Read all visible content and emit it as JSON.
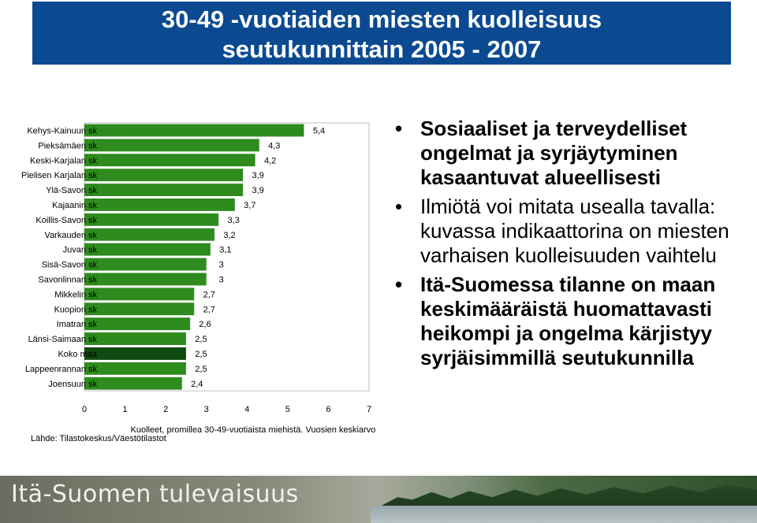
{
  "header": {
    "title_line1": "30-49 -vuotiaiden miesten kuolleisuus",
    "title_line2": "seutukunnittain 2005 - 2007"
  },
  "chart_data": {
    "type": "bar",
    "orientation": "horizontal",
    "categories": [
      "Kehys-Kainuun sk",
      "Pieksämäen sk",
      "Keski-Karjalan sk",
      "Pielisen Karjalan sk",
      "Ylä-Savon sk",
      "Kajaanin sk",
      "Koillis-Savon sk",
      "Varkauden sk",
      "Juvan sk",
      "Sisä-Savon sk",
      "Savonlinnan sk",
      "Mikkelin sk",
      "Kuopion sk",
      "Imatran sk",
      "Länsi-Saimaan sk",
      "Koko maa",
      "Lappeenrannan sk",
      "Joensuun sk"
    ],
    "values": [
      5.4,
      4.3,
      4.2,
      3.9,
      3.9,
      3.7,
      3.3,
      3.2,
      3.1,
      3.0,
      3.0,
      2.7,
      2.7,
      2.6,
      2.5,
      2.5,
      2.5,
      2.4
    ],
    "value_labels": [
      "5,4",
      "4,3",
      "4,2",
      "3,9",
      "3,9",
      "3,7",
      "3,3",
      "3,2",
      "3,1",
      "3",
      "3",
      "2,7",
      "2,7",
      "2,6",
      "2,5",
      "2,5",
      "2,5",
      "2,4"
    ],
    "xlim": [
      0,
      7
    ],
    "xticks": [
      "0",
      "1",
      "2",
      "3",
      "4",
      "5",
      "6",
      "7"
    ],
    "xlabel": "Kuolleet, promillea 30-49-vuotiaista miehistä. Vuosien keskiarvo",
    "bar_color": "#2e8b1e",
    "highlight_category": "Koko maa",
    "highlight_color": "#0f4a0f"
  },
  "source": "Lähde: Tilastokeskus/Väestötilastot",
  "bullets": [
    {
      "text": "Sosiaaliset ja terveydelliset ongelmat ja syrjäytyminen kasaantuvat alueellisesti",
      "bold": true
    },
    {
      "text": "Ilmiötä voi mitata usealla tavalla: kuvassa indikaattorina  on miesten varhaisen kuolleisuuden vaihtelu",
      "bold": false
    },
    {
      "text": "Itä-Suomessa tilanne on maan keskimääräistä huomattavasti heikompi ja ongelma kärjistyy syrjäisimmillä seutukunnilla",
      "bold": true
    }
  ],
  "footer": {
    "logo_text": "Itä-Suomen tulevaisuus"
  }
}
